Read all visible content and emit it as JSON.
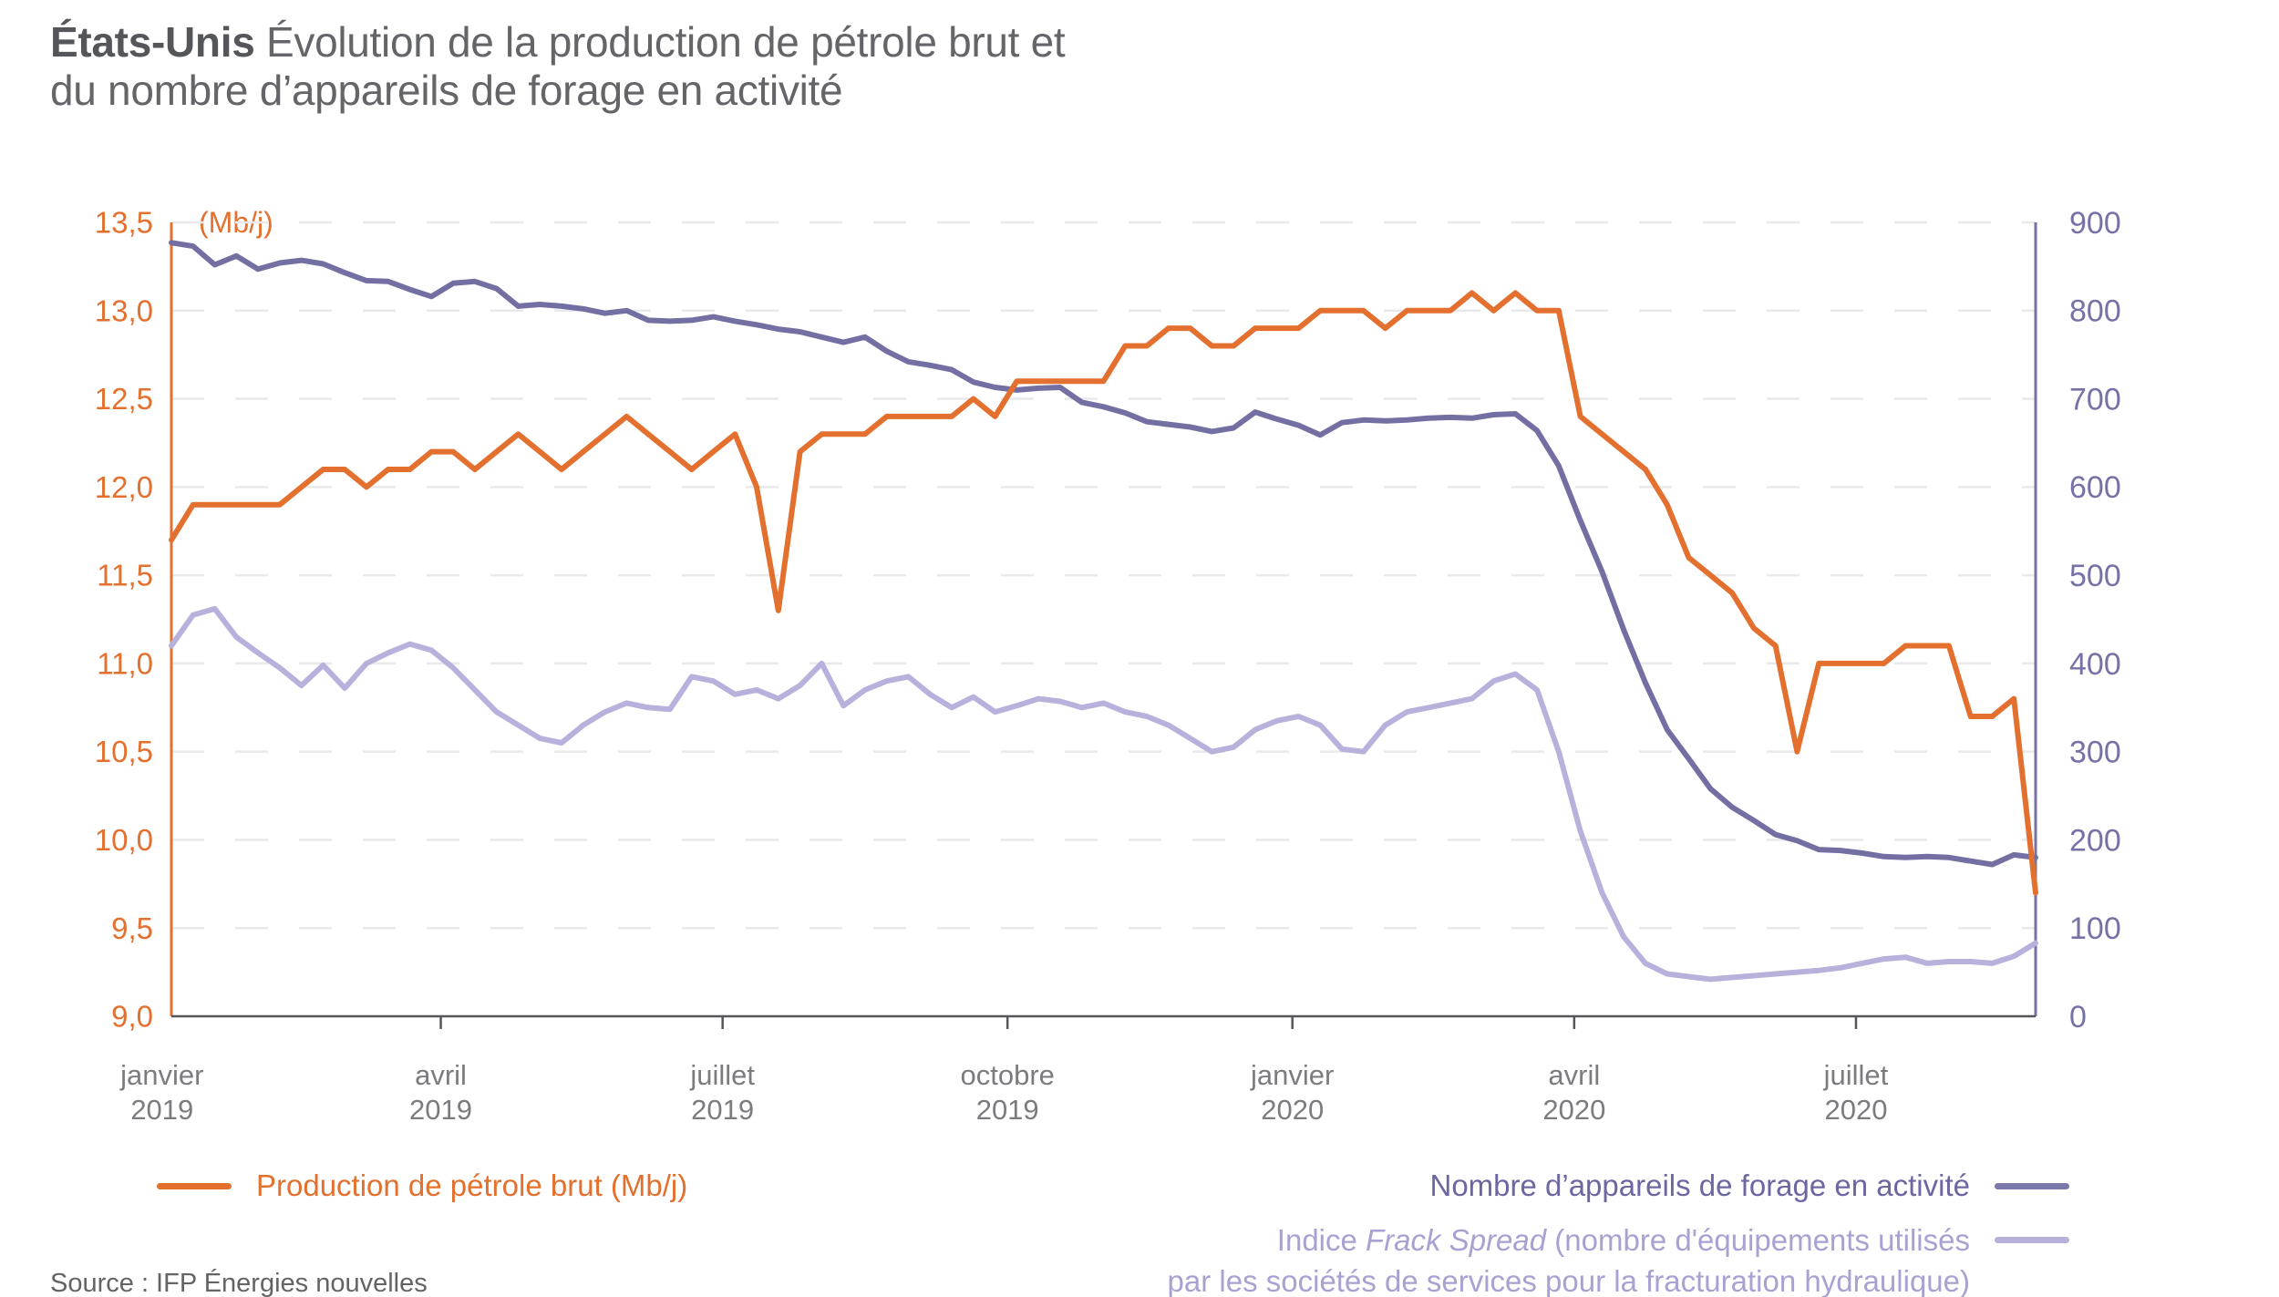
{
  "title": {
    "bold": "États-Unis",
    "line1": "Évolution de la production de pétrole brut et",
    "line2": "du nombre d’appareils de forage en activité"
  },
  "legend": {
    "production": "Production de pétrole brut (Mb/j)",
    "rigs": "Nombre d’appareils de forage en activité",
    "frack_prefix": "Indice ",
    "frack_italic": "Frack Spread",
    "frack_suffix": " (nombre d'équipements utilisés",
    "frack_line2": "par les sociétés de services pour la fracturation hydraulique)"
  },
  "source": "Source : IFP Énergies nouvelles",
  "chart_data": {
    "type": "line",
    "frequency": "hebdomadaire",
    "n_points": 87,
    "x_start": "janvier 2019",
    "x_end": "août 2020",
    "grid": "dashed horizontal",
    "legend_position": "bottom",
    "y_left": {
      "label": "(Mb/j)",
      "min": 9.0,
      "max": 13.5,
      "step": 0.5,
      "color": "#E3702E",
      "tick_labels": [
        "13,5",
        "13,0",
        "12,5",
        "12,0",
        "11,5",
        "11,0",
        "10,5",
        "10,0",
        "9,5",
        "9,0"
      ]
    },
    "y_right": {
      "min": 0,
      "max": 900,
      "step": 100,
      "color": "#7672A6",
      "tick_labels": [
        "900",
        "800",
        "700",
        "600",
        "500",
        "400",
        "300",
        "200",
        "100",
        "0"
      ]
    },
    "x_tick_labels": [
      {
        "month": "janvier",
        "year": "2019"
      },
      {
        "month": "avril",
        "year": "2019"
      },
      {
        "month": "juillet",
        "year": "2019"
      },
      {
        "month": "octobre",
        "year": "2019"
      },
      {
        "month": "janvier",
        "year": "2020"
      },
      {
        "month": "avril",
        "year": "2020"
      },
      {
        "month": "juillet",
        "year": "2020"
      }
    ],
    "series": [
      {
        "name": "Production de pétrole brut (Mb/j)",
        "axis": "left",
        "color": "#E3702E",
        "values": [
          11.7,
          11.9,
          11.9,
          11.9,
          11.9,
          11.9,
          12.0,
          12.1,
          12.1,
          12.0,
          12.1,
          12.1,
          12.2,
          12.2,
          12.1,
          12.2,
          12.3,
          12.2,
          12.1,
          12.2,
          12.3,
          12.4,
          12.3,
          12.2,
          12.1,
          12.2,
          12.3,
          12.0,
          11.3,
          12.2,
          12.3,
          12.3,
          12.3,
          12.4,
          12.4,
          12.4,
          12.4,
          12.5,
          12.4,
          12.6,
          12.6,
          12.6,
          12.6,
          12.6,
          12.8,
          12.8,
          12.9,
          12.9,
          12.8,
          12.8,
          12.9,
          12.9,
          12.9,
          13.0,
          13.0,
          13.0,
          12.9,
          13.0,
          13.0,
          13.0,
          13.1,
          13.0,
          13.1,
          13.0,
          13.0,
          12.4,
          12.3,
          12.2,
          12.1,
          11.9,
          11.6,
          11.5,
          11.4,
          11.2,
          11.1,
          10.5,
          11.0,
          11.0,
          11.0,
          11.0,
          11.1,
          11.1,
          11.1,
          10.7,
          10.7,
          10.8,
          9.7
        ]
      },
      {
        "name": "Nombre d’appareils de forage en activité",
        "axis": "right",
        "color": "#746FA2",
        "values": [
          877,
          873,
          852,
          862,
          847,
          854,
          857,
          853,
          843,
          834,
          833,
          824,
          816,
          831,
          833,
          825,
          805,
          807,
          805,
          802,
          797,
          800,
          789,
          788,
          789,
          793,
          788,
          784,
          779,
          776,
          770,
          764,
          770,
          754,
          742,
          738,
          733,
          719,
          713,
          710,
          712,
          713,
          696,
          691,
          684,
          674,
          671,
          668,
          663,
          667,
          685,
          677,
          670,
          659,
          673,
          676,
          675,
          676,
          678,
          679,
          678,
          682,
          683,
          664,
          624,
          562,
          504,
          438,
          378,
          325,
          292,
          258,
          237,
          222,
          206,
          199,
          189,
          188,
          185,
          181,
          180,
          181,
          180,
          176,
          172,
          183,
          180
        ]
      },
      {
        "name": "Indice Frack Spread (nombre d'équipements utilisés par les sociétés de services pour la fracturation hydraulique)",
        "axis": "right",
        "color": "#B7B1DC",
        "values": [
          420,
          455,
          462,
          430,
          412,
          395,
          375,
          398,
          372,
          400,
          412,
          422,
          415,
          395,
          370,
          345,
          330,
          315,
          310,
          330,
          345,
          355,
          350,
          348,
          385,
          380,
          365,
          370,
          360,
          375,
          400,
          352,
          370,
          380,
          385,
          365,
          350,
          362,
          345,
          352,
          360,
          357,
          350,
          355,
          345,
          340,
          330,
          315,
          300,
          305,
          325,
          335,
          340,
          330,
          303,
          300,
          330,
          345,
          350,
          355,
          360,
          380,
          388,
          370,
          300,
          210,
          140,
          90,
          60,
          48,
          45,
          42,
          44,
          46,
          48,
          50,
          52,
          55,
          60,
          65,
          67,
          60,
          62,
          62,
          60,
          68,
          83
        ]
      }
    ]
  }
}
